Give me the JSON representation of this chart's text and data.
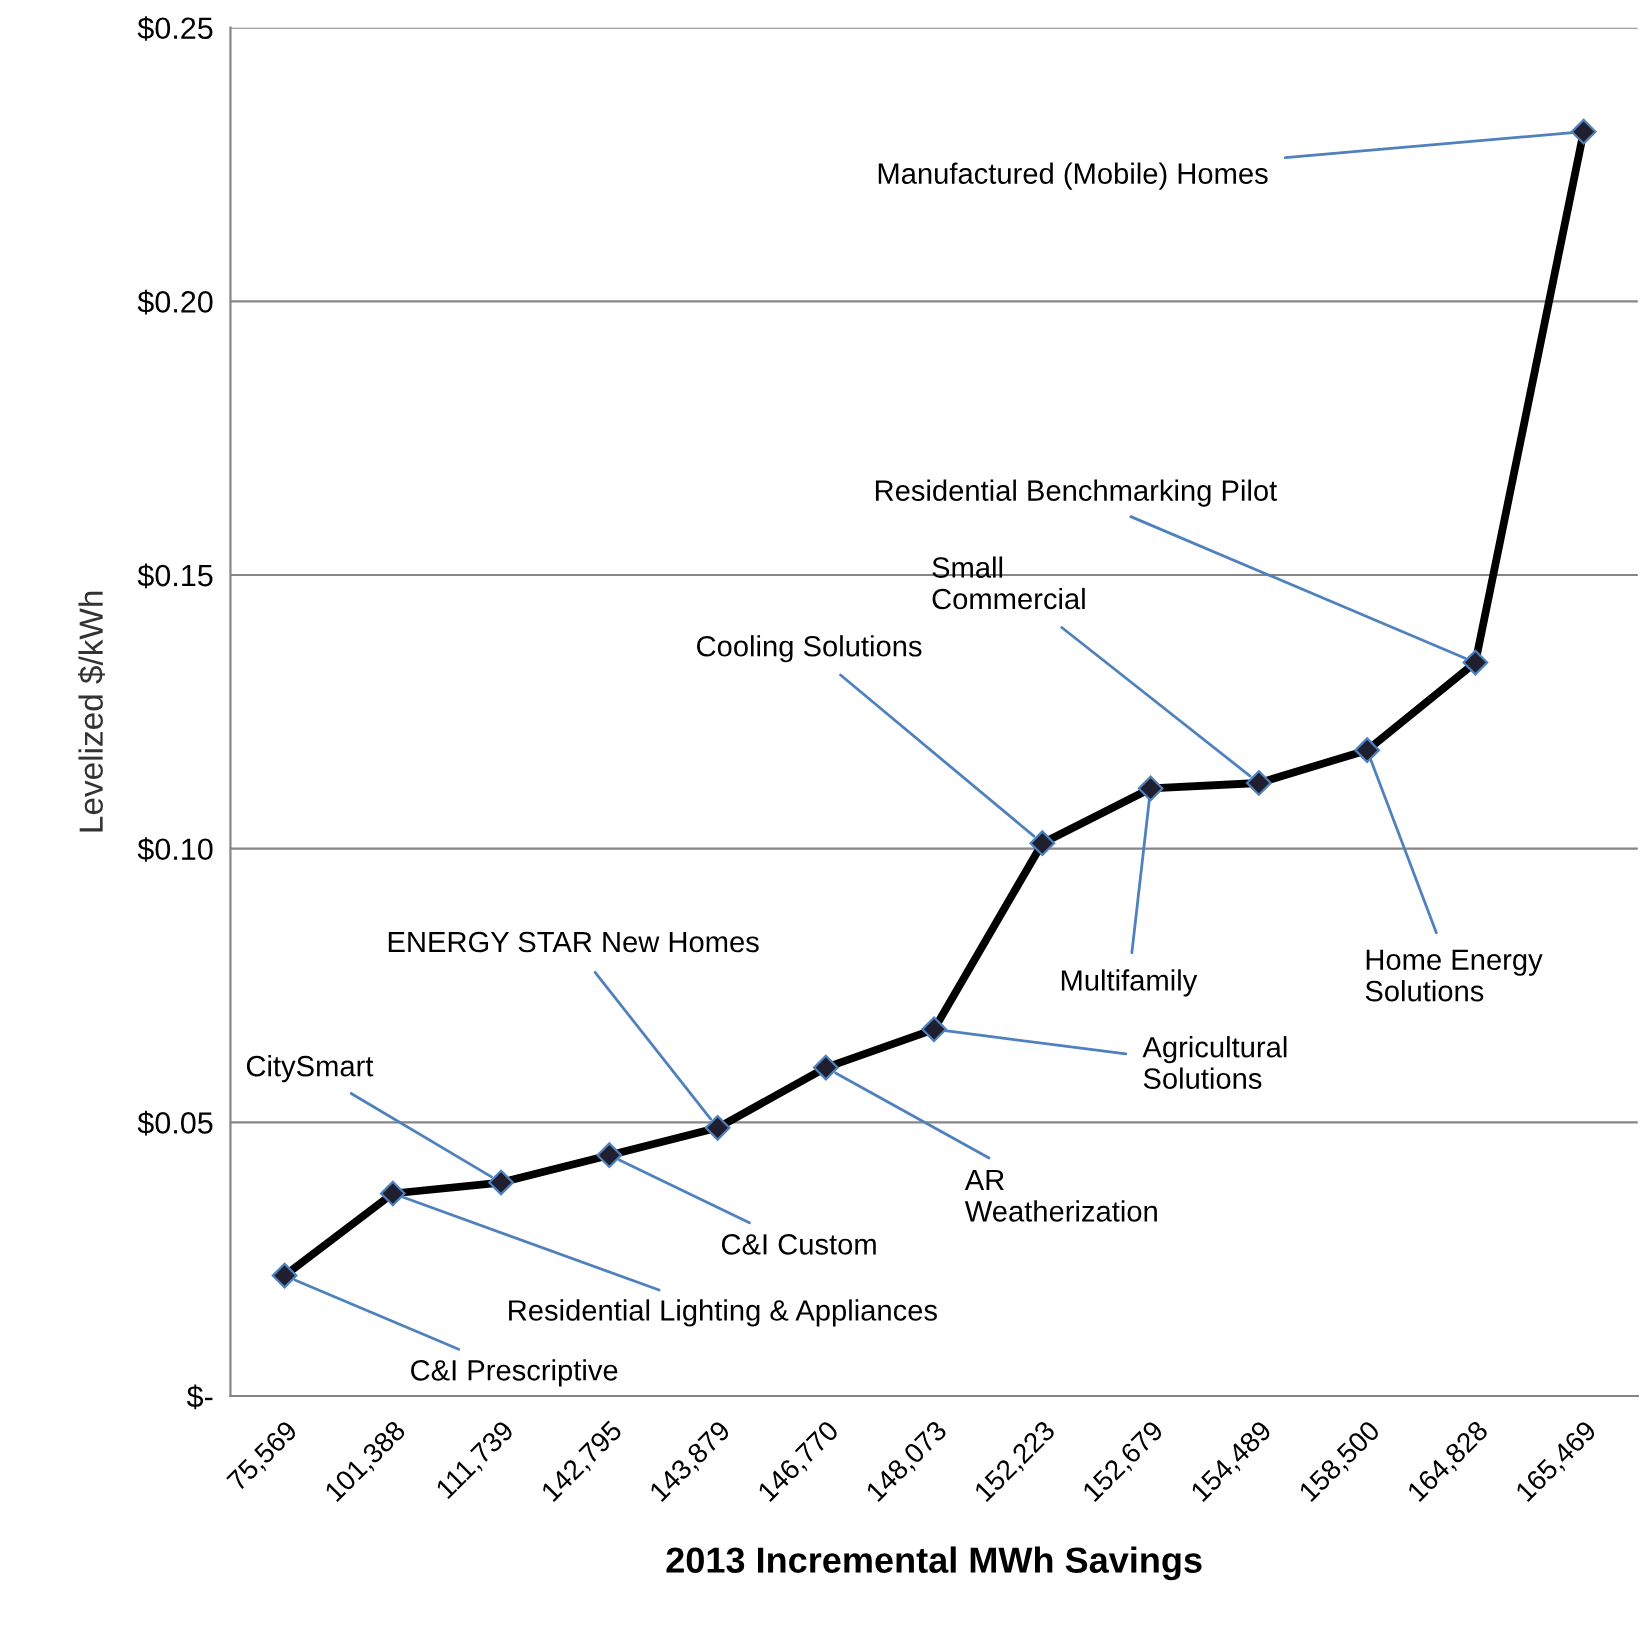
{
  "chart_data": {
    "type": "line",
    "xlabel": "2013 Incremental MWh Savings",
    "ylabel": "Levelized $/kWh",
    "categories": [
      "75,569",
      "101,388",
      "111,739",
      "142,795",
      "143,879",
      "146,770",
      "148,073",
      "152,223",
      "152,679",
      "154,489",
      "158,500",
      "164,828",
      "165,469"
    ],
    "series": [
      {
        "color": "#000000",
        "values": [
          0.022,
          0.037,
          0.039,
          0.044,
          0.049,
          0.06,
          0.067,
          0.101,
          0.111,
          0.112,
          0.118,
          0.134,
          0.231
        ]
      }
    ],
    "ylim": [
      0,
      0.25
    ],
    "yticks": [
      {
        "value": 0,
        "label": "$-"
      },
      {
        "value": 0.05,
        "label": "$0.05"
      },
      {
        "value": 0.1,
        "label": "$0.10"
      },
      {
        "value": 0.15,
        "label": "$0.15"
      },
      {
        "value": 0.2,
        "label": "$0.20"
      },
      {
        "value": 0.25,
        "label": "$0.25"
      }
    ],
    "grid": "y",
    "marker": "diamond",
    "line_style": "solid",
    "legend": false,
    "annotations": [
      {
        "text": "C&I Prescriptive",
        "x": "75,569",
        "y": 0.022
      },
      {
        "text": "Residential Lighting & Appliances",
        "x": "101,388",
        "y": 0.037
      },
      {
        "text": "CitySmart",
        "x": "111,739",
        "y": 0.039
      },
      {
        "text": "C&I Custom",
        "x": "142,795",
        "y": 0.044
      },
      {
        "text": "ENERGY STAR New Homes",
        "x": "143,879",
        "y": 0.049
      },
      {
        "text": "AR\nWeatherization",
        "x": "146,770",
        "y": 0.06
      },
      {
        "text": "Agricultural\nSolutions",
        "x": "148,073",
        "y": 0.067
      },
      {
        "text": "Cooling Solutions",
        "x": "152,223",
        "y": 0.101
      },
      {
        "text": "Multifamily",
        "x": "152,679",
        "y": 0.111
      },
      {
        "text": "Small\nCommercial",
        "x": "154,489",
        "y": 0.112
      },
      {
        "text": "Home Energy\nSolutions",
        "x": "158,500",
        "y": 0.118
      },
      {
        "text": "Residential Benchmarking Pilot",
        "x": "164,828",
        "y": 0.134
      },
      {
        "text": "Manufactured (Mobile) Homes",
        "x": "165,469",
        "y": 0.231
      }
    ]
  }
}
